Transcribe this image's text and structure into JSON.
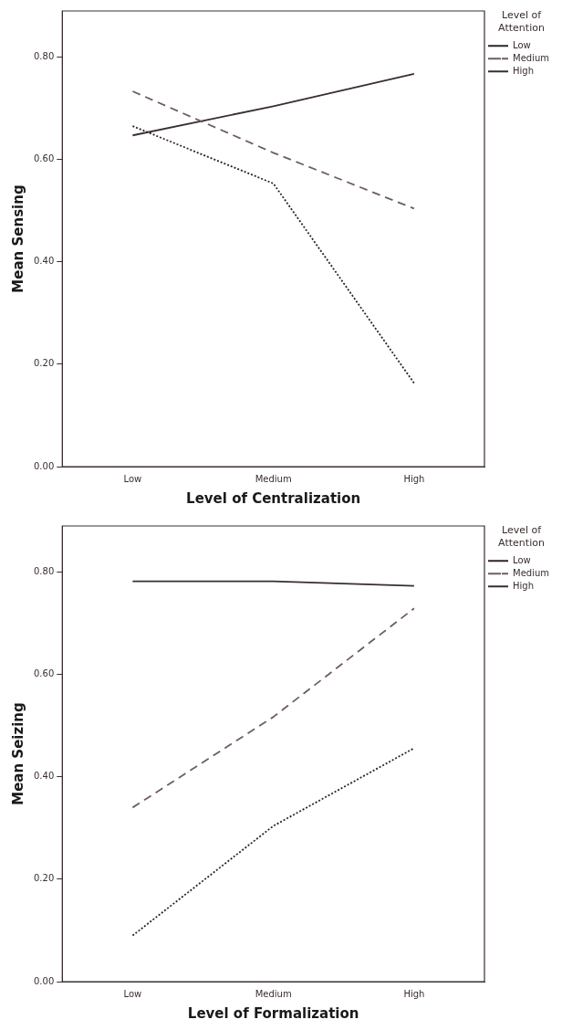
{
  "chart_data": [
    {
      "type": "line",
      "xlabel": "Level of Centralization",
      "ylabel": "Mean Sensing",
      "legend_title": "Level of Attention",
      "legend": "top right",
      "grid": false,
      "marker": "none",
      "categories": [
        "Low",
        "Medium",
        "High"
      ],
      "ylim": [
        0,
        0.89
      ],
      "yticks": [
        {
          "value": 0,
          "label": "0.00"
        },
        {
          "value": 0.2,
          "label": "0.20"
        },
        {
          "value": 0.4,
          "label": "0.40"
        },
        {
          "value": 0.6,
          "label": "0.60"
        },
        {
          "value": 0.8,
          "label": "0.80"
        }
      ],
      "series": [
        {
          "name": "Low",
          "color": "#2e2424",
          "line_style": "dotted",
          "values": [
            0.665,
            0.553,
            0.163
          ]
        },
        {
          "name": "Medium",
          "color": "#6e5e5e",
          "line_style": "dashed",
          "values": [
            0.733,
            0.613,
            0.504
          ]
        },
        {
          "name": "High",
          "color": "#3a2e2e",
          "line_style": "solid",
          "values": [
            0.647,
            0.704,
            0.767
          ]
        }
      ]
    },
    {
      "type": "line",
      "xlabel": "Level of Formalization",
      "ylabel": "Mean Seizing",
      "legend_title": "Level of Attention",
      "legend": "top right",
      "grid": false,
      "marker": "none",
      "categories": [
        "Low",
        "Medium",
        "High"
      ],
      "ylim": [
        0,
        0.89
      ],
      "yticks": [
        {
          "value": 0,
          "label": "0.00"
        },
        {
          "value": 0.2,
          "label": "0.20"
        },
        {
          "value": 0.4,
          "label": "0.40"
        },
        {
          "value": 0.6,
          "label": "0.60"
        },
        {
          "value": 0.8,
          "label": "0.80"
        }
      ],
      "series": [
        {
          "name": "Low",
          "color": "#2e2424",
          "line_style": "dotted",
          "values": [
            0.09,
            0.304,
            0.456
          ]
        },
        {
          "name": "Medium",
          "color": "#6e5e5e",
          "line_style": "dashed",
          "values": [
            0.34,
            0.517,
            0.729
          ]
        },
        {
          "name": "High",
          "color": "#3a2e2e",
          "line_style": "solid",
          "values": [
            0.782,
            0.782,
            0.773
          ]
        }
      ]
    }
  ]
}
